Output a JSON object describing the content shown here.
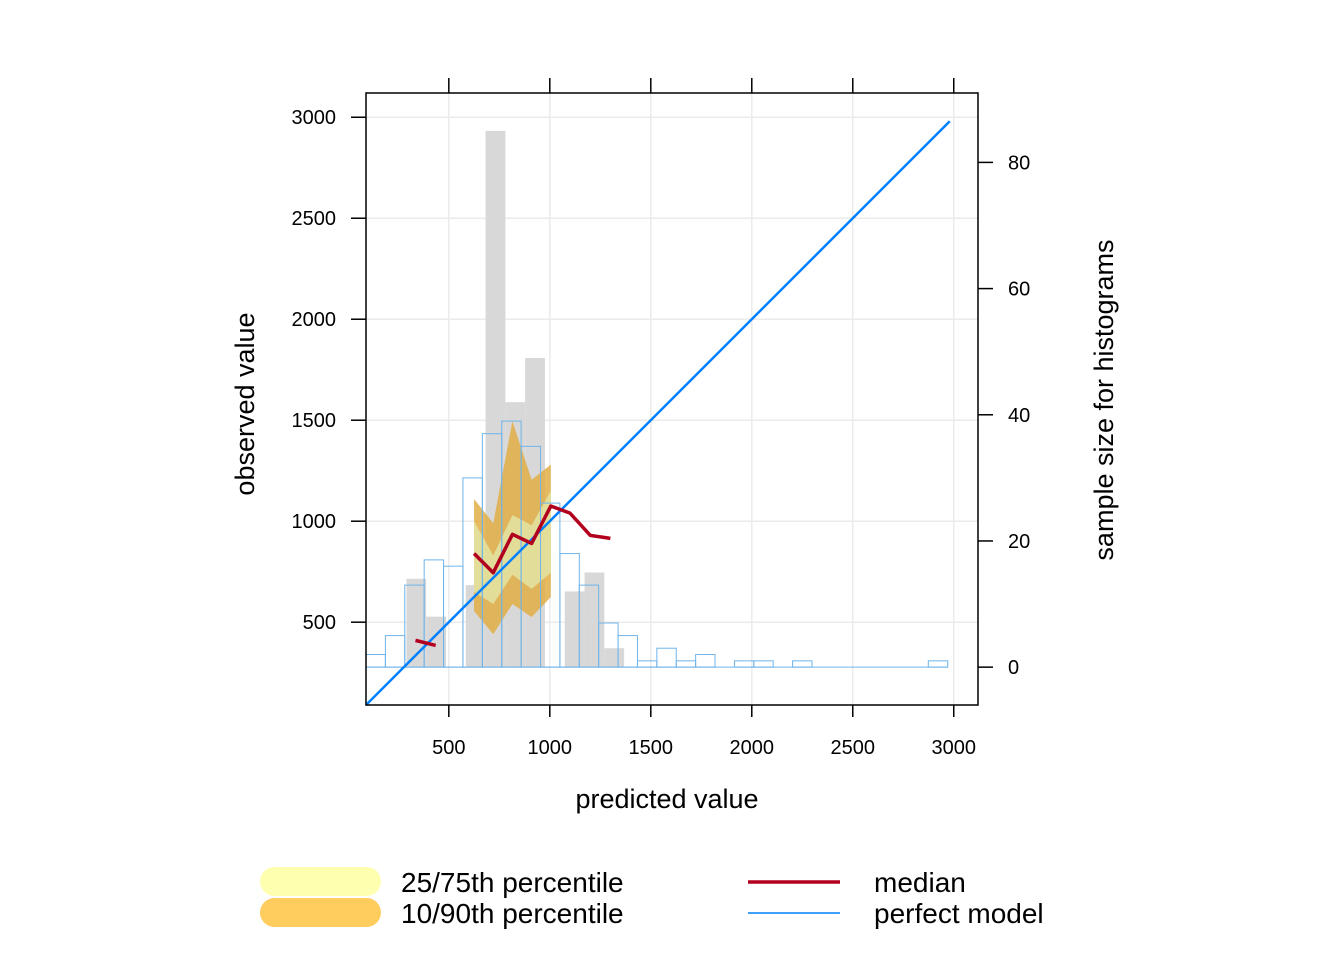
{
  "chart_data": {
    "type": "conditional-quantile",
    "xlabel": "predicted value",
    "ylabel": "observed value",
    "y2label": "sample size for histograms",
    "xlim": [
      90,
      3120
    ],
    "ylim": [
      90,
      3120
    ],
    "y2lim": [
      -6,
      91
    ],
    "x_ticks": [
      500,
      1000,
      1500,
      2000,
      2500,
      3000
    ],
    "y_ticks": [
      500,
      1000,
      1500,
      2000,
      2500,
      3000
    ],
    "y2_ticks": [
      0,
      20,
      40,
      60,
      80
    ],
    "grid": true,
    "colors": {
      "q25_75": "#FFFFB0",
      "q10_90": "#FFCC5E",
      "q10_90_band": "#E2AE45",
      "q25_75_band": "#E2E2A0",
      "median": "#B2001F",
      "perfect": "#0080FF",
      "obs_hist_fill": "#D8D8D8",
      "pred_hist_stroke": "#6FB4EA"
    },
    "perfect_model": {
      "x": [
        90,
        2980
      ],
      "y": [
        90,
        2980
      ]
    },
    "median": {
      "segments": [
        {
          "x": [
            335,
            435
          ],
          "y": [
            410,
            385
          ]
        },
        {
          "x": [
            625,
            720,
            815,
            910,
            1005,
            1100,
            1200,
            1300
          ],
          "y": [
            840,
            745,
            935,
            890,
            1075,
            1040,
            930,
            915
          ]
        }
      ]
    },
    "quantile_bands": {
      "x": [
        625,
        720,
        815,
        910,
        1005
      ],
      "q10": [
        555,
        440,
        590,
        525,
        625
      ],
      "q25": [
        650,
        590,
        735,
        665,
        745
      ],
      "q75": [
        1000,
        830,
        1030,
        980,
        1150
      ],
      "q90": [
        1110,
        990,
        1495,
        1205,
        1280
      ]
    },
    "observed_histogram": {
      "bin_edges": [
        290,
        388,
        486,
        584,
        682,
        780,
        878,
        976,
        1074,
        1172,
        1270,
        1368
      ],
      "counts": [
        14,
        8,
        0,
        13,
        85,
        42,
        49,
        0,
        12,
        15,
        3
      ]
    },
    "predicted_histogram": {
      "bin_edges": [
        90,
        186,
        282,
        378,
        474,
        570,
        666,
        762,
        858,
        954,
        1050,
        1146,
        1242,
        1338,
        1434,
        1530,
        1626,
        1722,
        1818,
        1914,
        2010,
        2106,
        2202,
        2298,
        2394,
        2490,
        2586,
        2682,
        2778,
        2874,
        2970
      ],
      "counts": [
        2,
        5,
        13,
        17,
        16,
        30,
        37,
        39,
        35,
        26,
        18,
        13,
        7,
        5,
        1,
        3,
        1,
        2,
        0,
        1,
        1,
        0,
        1,
        0,
        0,
        0,
        0,
        0,
        0,
        1
      ]
    }
  },
  "legend": {
    "items": [
      {
        "label": "25/75th percentile",
        "color": "#FFFFB0"
      },
      {
        "label": "10/90th percentile",
        "color": "#FFCC5E"
      },
      {
        "label": "median",
        "color": "#B2001F"
      },
      {
        "label": "perfect model",
        "color": "#0080FF"
      }
    ]
  }
}
